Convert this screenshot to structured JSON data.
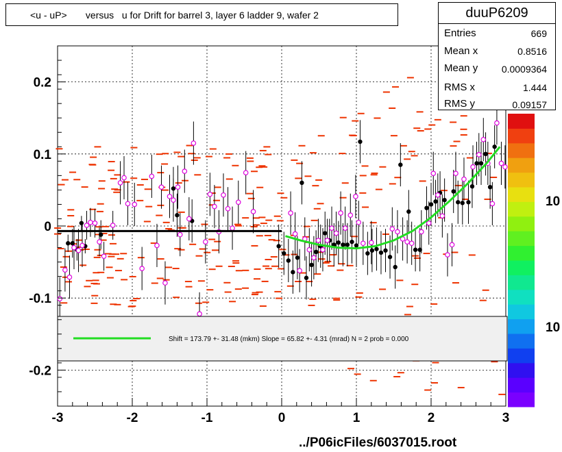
{
  "title": "<u - uP>       versus   u for Drift for barrel 3, layer 6 ladder 9, wafer 2",
  "stats": {
    "name": "duuP6209",
    "rows": [
      {
        "label": "Entries",
        "value": "669"
      },
      {
        "label": "Mean x",
        "value": "0.8516"
      },
      {
        "label": "Mean y",
        "value": "0.0009364"
      },
      {
        "label": "RMS x",
        "value": "1.444"
      },
      {
        "label": "RMS y",
        "value": "0.09157"
      }
    ]
  },
  "fit_text": "Shift =   173.79 +- 31.48 (mkm) Slope =    65.82 +- 4.31 (mrad)  N = 2 prob = 0.000",
  "footer": "../P06icFiles/6037015.root",
  "palette_labels": [
    "10",
    "10"
  ],
  "colors": {
    "profile": "#000000",
    "markers_open": "#dd00dd",
    "cells": "#ee3300",
    "fit_left": "#000000",
    "fit_right": "#22dd22"
  },
  "chart_data": {
    "type": "scatter",
    "title": "<u - uP>       versus   u for Drift for barrel 3, layer 6 ladder 9, wafer 2",
    "xlim": [
      -3,
      3
    ],
    "ylim": [
      -0.25,
      0.25
    ],
    "xticks": [
      "-3",
      "-2",
      "-1",
      "0",
      "1",
      "2",
      "3"
    ],
    "yticks": [
      "-0.2",
      "-0.1",
      "0",
      "0.1",
      "0.2"
    ],
    "grid": true,
    "series": [
      {
        "kind": "profile-black",
        "points": [
          [
            -2.86,
            -0.024,
            0.012
          ],
          [
            -2.8,
            -0.024,
            0.02
          ],
          [
            -2.74,
            -0.033,
            0.015
          ],
          [
            -2.68,
            0.004,
            0.01
          ],
          [
            -2.63,
            -0.028,
            0.01
          ],
          [
            -2.42,
            -0.012,
            0.02
          ],
          [
            -1.45,
            0.052,
            0.03
          ],
          [
            -1.4,
            0.015,
            0.03
          ],
          [
            -1.2,
            0.007,
            0.03
          ],
          [
            -0.04,
            -0.028,
            0.03
          ],
          [
            0.03,
            -0.038,
            0.03
          ],
          [
            0.09,
            -0.048,
            0.03
          ],
          [
            0.15,
            -0.064,
            0.03
          ],
          [
            0.21,
            -0.044,
            0.03
          ],
          [
            0.27,
            0.06,
            0.03
          ],
          [
            0.33,
            -0.072,
            0.03
          ],
          [
            0.4,
            -0.054,
            0.03
          ],
          [
            0.46,
            -0.036,
            0.03
          ],
          [
            0.52,
            -0.028,
            0.03
          ],
          [
            0.58,
            -0.01,
            0.03
          ],
          [
            0.64,
            -0.02,
            0.03
          ],
          [
            0.7,
            -0.026,
            0.03
          ],
          [
            0.76,
            -0.023,
            0.03
          ],
          [
            0.82,
            -0.026,
            0.03
          ],
          [
            0.88,
            -0.026,
            0.03
          ],
          [
            0.94,
            -0.022,
            0.03
          ],
          [
            1.0,
            -0.027,
            0.03
          ],
          [
            1.05,
            0.117,
            0.03
          ],
          [
            1.15,
            -0.038,
            0.03
          ],
          [
            1.21,
            -0.034,
            0.03
          ],
          [
            1.27,
            -0.032,
            0.03
          ],
          [
            1.33,
            -0.037,
            0.03
          ],
          [
            1.39,
            -0.034,
            0.03
          ],
          [
            1.45,
            -0.043,
            0.03
          ],
          [
            1.52,
            -0.057,
            0.03
          ],
          [
            1.59,
            0.085,
            0.03
          ],
          [
            1.7,
            0.02,
            0.03
          ],
          [
            1.79,
            -0.033,
            0.03
          ],
          [
            1.85,
            -0.033,
            0.03
          ],
          [
            1.94,
            0.025,
            0.03
          ],
          [
            2.0,
            0.03,
            0.03
          ],
          [
            2.06,
            0.034,
            0.03
          ],
          [
            2.12,
            0.046,
            0.03
          ],
          [
            2.18,
            0.036,
            0.03
          ],
          [
            2.3,
            0.048,
            0.03
          ],
          [
            2.36,
            0.033,
            0.03
          ],
          [
            2.42,
            0.032,
            0.03
          ],
          [
            2.5,
            0.033,
            0.03
          ],
          [
            2.55,
            0.055,
            0.03
          ],
          [
            2.61,
            0.087,
            0.03
          ],
          [
            2.67,
            0.087,
            0.03
          ],
          [
            2.73,
            0.1,
            0.03
          ],
          [
            2.79,
            0.054,
            0.03
          ],
          [
            2.85,
            0.11,
            0.03
          ]
        ]
      },
      {
        "kind": "open-magenta",
        "points": [
          [
            -2.97,
            -0.101,
            0.03
          ],
          [
            -2.9,
            -0.061,
            0.03
          ],
          [
            -2.84,
            -0.071,
            0.03
          ],
          [
            -2.78,
            -0.03,
            0.03
          ],
          [
            -2.72,
            -0.034,
            0.03
          ],
          [
            -2.67,
            -0.027,
            0.03
          ],
          [
            -2.61,
            0.001,
            0.02
          ],
          [
            -2.56,
            0.005,
            0.02
          ],
          [
            -2.5,
            0.004,
            0.02
          ],
          [
            -2.44,
            -0.022,
            0.02
          ],
          [
            -2.38,
            -0.042,
            0.02
          ],
          [
            -2.26,
            0.001,
            0.02
          ],
          [
            -2.16,
            0.06,
            0.03
          ],
          [
            -2.11,
            0.067,
            0.03
          ],
          [
            -2.06,
            0.031,
            0.03
          ],
          [
            -1.97,
            0.03,
            0.03
          ],
          [
            -1.87,
            -0.059,
            0.03
          ],
          [
            -1.74,
            0.069,
            0.03
          ],
          [
            -1.67,
            -0.027,
            0.03
          ],
          [
            -1.61,
            0.054,
            0.03
          ],
          [
            -1.56,
            -0.079,
            0.03
          ],
          [
            -1.5,
            0.041,
            0.03
          ],
          [
            -1.45,
            0.036,
            0.03
          ],
          [
            -1.39,
            0.054,
            0.03
          ],
          [
            -1.36,
            -0.012,
            0.03
          ],
          [
            -1.3,
            0.076,
            0.03
          ],
          [
            -1.24,
            0.01,
            0.03
          ],
          [
            -1.18,
            0.115,
            0.03
          ],
          [
            -1.1,
            -0.122,
            0.03
          ],
          [
            -1.02,
            -0.022,
            0.03
          ],
          [
            -0.96,
            0.044,
            0.03
          ],
          [
            -0.9,
            0.027,
            0.03
          ],
          [
            -0.84,
            -0.008,
            0.03
          ],
          [
            -0.78,
            0.043,
            0.03
          ],
          [
            -0.72,
            0.024,
            0.03
          ],
          [
            -0.66,
            -0.003,
            0.03
          ],
          [
            -0.58,
            0.033,
            0.03
          ],
          [
            -0.48,
            0.074,
            0.03
          ],
          [
            -0.38,
            0.02,
            0.03
          ],
          [
            0.12,
            0.018,
            0.03
          ],
          [
            0.18,
            -0.011,
            0.03
          ],
          [
            0.24,
            -0.062,
            0.03
          ],
          [
            0.31,
            -0.018,
            0.03
          ],
          [
            0.37,
            -0.033,
            0.03
          ],
          [
            0.43,
            -0.044,
            0.03
          ],
          [
            0.49,
            -0.02,
            0.03
          ],
          [
            0.55,
            -0.033,
            0.03
          ],
          [
            0.61,
            -0.02,
            0.03
          ],
          [
            0.67,
            -0.003,
            0.03
          ],
          [
            0.73,
            -0.01,
            0.03
          ],
          [
            0.79,
            0.018,
            0.03
          ],
          [
            0.85,
            -0.003,
            0.03
          ],
          [
            0.92,
            0.015,
            0.03
          ],
          [
            0.99,
            0.041,
            0.03
          ],
          [
            1.03,
            0.005,
            0.03
          ],
          [
            1.09,
            -0.024,
            0.03
          ],
          [
            1.2,
            -0.023,
            0.03
          ],
          [
            1.48,
            -0.004,
            0.03
          ],
          [
            1.55,
            -0.008,
            0.03
          ],
          [
            1.62,
            -0.018,
            0.03
          ],
          [
            1.68,
            -0.022,
            0.03
          ],
          [
            1.74,
            -0.024,
            0.03
          ],
          [
            1.87,
            -0.008,
            0.03
          ],
          [
            1.97,
            0.004,
            0.03
          ],
          [
            2.03,
            0.073,
            0.03
          ],
          [
            2.09,
            0.043,
            0.03
          ],
          [
            2.15,
            0.014,
            0.03
          ],
          [
            2.22,
            -0.04,
            0.03
          ],
          [
            2.28,
            -0.026,
            0.03
          ],
          [
            2.33,
            0.073,
            0.03
          ],
          [
            2.44,
            0.065,
            0.03
          ],
          [
            2.56,
            0.082,
            0.03
          ],
          [
            2.64,
            0.099,
            0.03
          ],
          [
            2.7,
            0.12,
            0.03
          ],
          [
            2.76,
            0.087,
            0.03
          ],
          [
            2.82,
            0.031,
            0.03
          ],
          [
            2.88,
            0.143,
            0.03
          ],
          [
            2.94,
            0.087,
            0.03
          ],
          [
            2.99,
            0.082,
            0.03
          ]
        ]
      },
      {
        "kind": "fit-left",
        "x": [
          -3.0,
          0.0
        ],
        "y": [
          -0.007,
          -0.007
        ]
      },
      {
        "kind": "fit-right",
        "x": [
          0.05,
          0.25,
          0.5,
          0.75,
          1.0,
          1.25,
          1.5,
          1.75,
          2.0,
          2.25,
          2.5,
          2.75,
          2.92
        ],
        "y": [
          -0.014,
          -0.02,
          -0.026,
          -0.03,
          -0.031,
          -0.028,
          -0.02,
          -0.007,
          0.012,
          0.035,
          0.06,
          0.088,
          0.11
        ]
      }
    ]
  }
}
